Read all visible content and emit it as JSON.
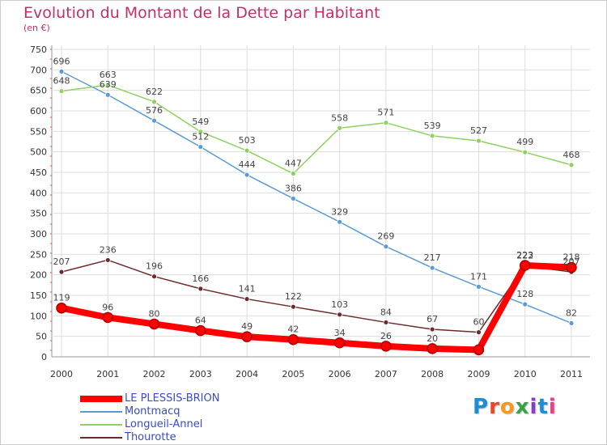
{
  "title": "Evolution du Montant de la Dette par Habitant",
  "subtitle": "(en €)",
  "logo": {
    "text": "Proxiti",
    "colors": [
      "#1a8fd6",
      "#e8472a",
      "#f39a1e",
      "#3aa34a",
      "#8a3ec1",
      "#1a8fd6",
      "#e83e8c"
    ]
  },
  "chart_data": {
    "type": "line",
    "title": "Evolution du Montant de la Dette par Habitant",
    "subtitle": "(en €)",
    "xlabel": "",
    "ylabel": "",
    "x": [
      "2000",
      "2001",
      "2002",
      "2003",
      "2004",
      "2005",
      "2006",
      "2007",
      "2008",
      "2009",
      "2010",
      "2011"
    ],
    "ylim": [
      0,
      750
    ],
    "yticks": [
      0,
      50,
      100,
      150,
      200,
      250,
      300,
      350,
      400,
      450,
      500,
      550,
      600,
      650,
      700,
      750
    ],
    "grid": true,
    "legend_position": "bottom-left",
    "series": [
      {
        "name": "LE PLESSIS-BRION",
        "color": "#ff0000",
        "values": [
          119,
          96,
          80,
          64,
          49,
          42,
          34,
          26,
          20,
          17,
          223,
          218
        ],
        "labels": [
          "119",
          "96",
          "80",
          "64",
          "49",
          "42",
          "34",
          "26",
          "20",
          "",
          "223",
          "218"
        ],
        "highlight": true
      },
      {
        "name": "Montmacq",
        "color": "#5b9bd5",
        "values": [
          696,
          639,
          576,
          512,
          444,
          386,
          329,
          269,
          217,
          171,
          128,
          82
        ],
        "labels": [
          "696",
          "639",
          "576",
          "512",
          "444",
          "386",
          "329",
          "269",
          "217",
          "171",
          "128",
          "82"
        ]
      },
      {
        "name": "Longueil-Annel",
        "color": "#8fd061",
        "values": [
          648,
          663,
          622,
          549,
          503,
          447,
          558,
          571,
          539,
          527,
          499,
          468
        ],
        "labels": [
          "648",
          "663",
          "622",
          "549",
          "503",
          "447",
          "558",
          "571",
          "539",
          "527",
          "499",
          "468"
        ]
      },
      {
        "name": "Thourotte",
        "color": "#6e2a2a",
        "values": [
          207,
          236,
          196,
          166,
          141,
          122,
          103,
          84,
          67,
          60,
          222,
          207
        ],
        "labels": [
          "207",
          "236",
          "196",
          "166",
          "141",
          "122",
          "103",
          "84",
          "67",
          "60",
          "222",
          "207"
        ]
      }
    ]
  }
}
